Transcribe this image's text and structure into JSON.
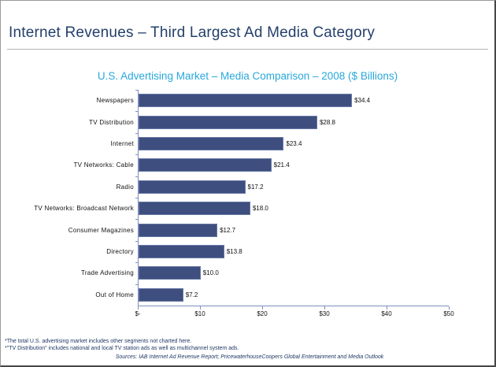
{
  "header": {
    "title": "Internet Revenues – Third Largest Ad Media Category"
  },
  "chart_data": {
    "type": "bar",
    "orientation": "horizontal",
    "title": "U.S. Advertising Market – Media Comparison – 2008 ($ Billions)",
    "categories": [
      "Newspapers",
      "TV Distribution",
      "Internet",
      "TV Networks: Cable",
      "Radio",
      "TV Networks: Broadcast Network",
      "Consumer Magazines",
      "Directory",
      "Trade Advertising",
      "Out of Home"
    ],
    "values": [
      34.4,
      28.8,
      23.4,
      21.4,
      17.2,
      18.0,
      12.7,
      13.8,
      10.0,
      7.2
    ],
    "value_labels": [
      "$34.4",
      "$28.8",
      "$23.4",
      "$21.4",
      "$17.2",
      "$18.0",
      "$12.7",
      "$13.8",
      "$10.0",
      "$7.2"
    ],
    "xlim": [
      0,
      50
    ],
    "x_ticks": [
      "$-",
      "$10",
      "$20",
      "$30",
      "$40",
      "$50"
    ],
    "grid": false,
    "legend": false,
    "bar_color": "#3E4E7E"
  },
  "footnotes": {
    "line1": "*The total U.S. advertising market includes other segments not charted here.",
    "line2": "*\"TV Distribution\" includes national and local TV station ads as well as multichannel system ads.",
    "sources": "Sources: IAB Internet Ad Revenue Report; PricewaterhouseCoopers Global Entertainment and Media Outlook"
  },
  "colors": {
    "title": "#24406B",
    "subtitle": "#29A8DC",
    "bar": "#3E4E7E",
    "axis": "#8090BE",
    "footnote": "#1F3864"
  }
}
